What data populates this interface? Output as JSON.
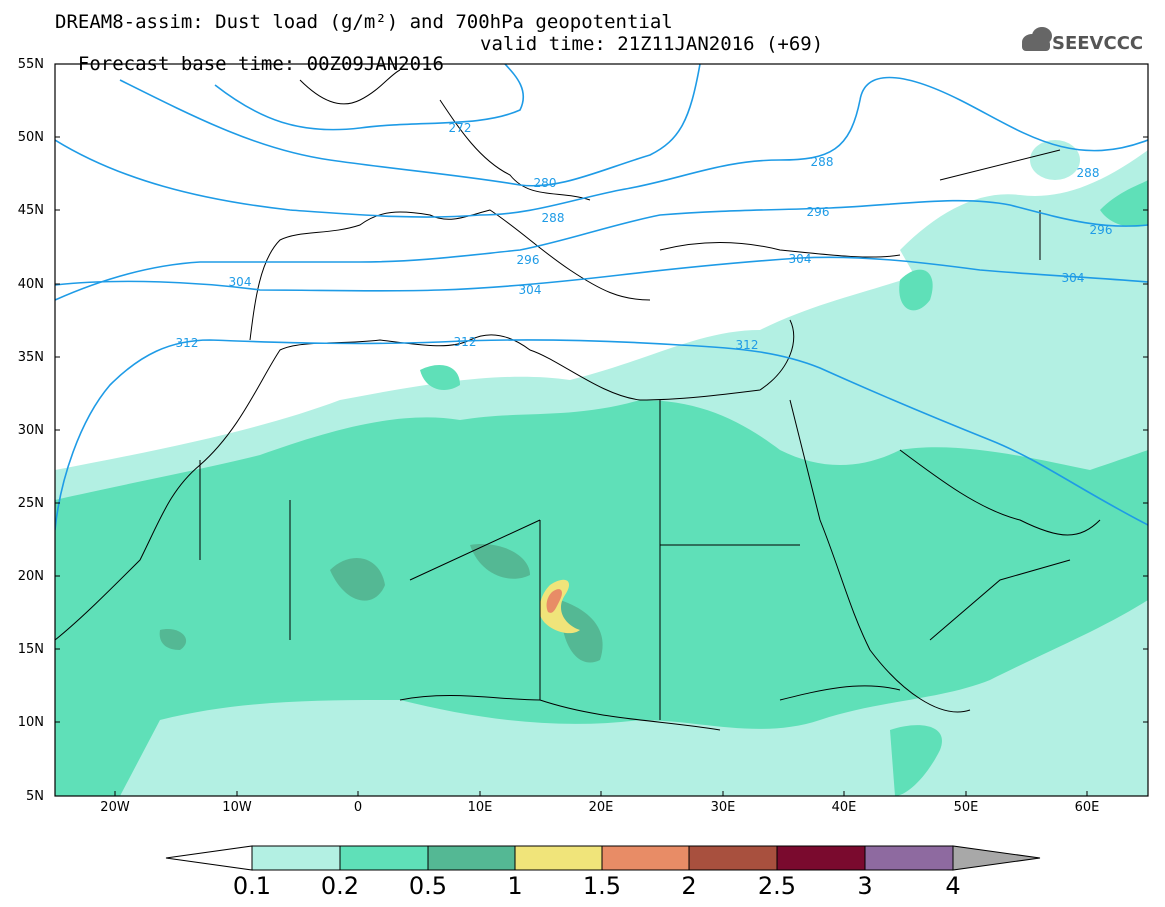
{
  "title": {
    "line1": "DREAM8-assim: Dust load (g/m²) and 700hPa geopotential",
    "base_time": "Forecast base time: 00Z09JAN2016",
    "valid_time": "valid time: 21Z11JAN2016 (+69)"
  },
  "logo": {
    "text": "SEEVCCC",
    "icon": "cloud-logo-icon"
  },
  "axes": {
    "lat_labels": [
      "55N",
      "50N",
      "45N",
      "40N",
      "35N",
      "30N",
      "25N",
      "20N",
      "15N",
      "10N",
      "5N"
    ],
    "lon_labels": [
      "20W",
      "10W",
      "0",
      "10E",
      "20E",
      "30E",
      "40E",
      "50E",
      "60E"
    ]
  },
  "contours": {
    "geopotential_labels": [
      "272",
      "280",
      "288",
      "288",
      "288",
      "296",
      "296",
      "296",
      "304",
      "304",
      "304",
      "304",
      "312",
      "312",
      "312"
    ],
    "color": "#1e9be6"
  },
  "colorbar": {
    "labels": [
      "0.1",
      "0.2",
      "0.5",
      "1",
      "1.5",
      "2",
      "2.5",
      "3",
      "4"
    ],
    "colors": [
      "#ffffff",
      "#b3f0e3",
      "#5fe0b8",
      "#54b894",
      "#f0e47a",
      "#e88c66",
      "#a8503e",
      "#7a0a2e",
      "#8e6aa0",
      "#a8a8a8"
    ]
  }
}
